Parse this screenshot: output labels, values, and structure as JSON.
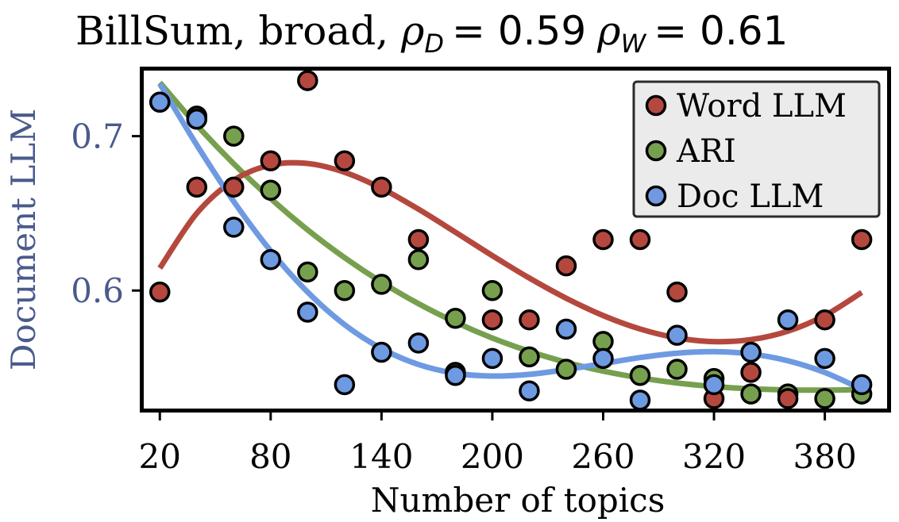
{
  "chart_data": {
    "type": "scatter",
    "title": {
      "prefix": "BillSum, broad, ",
      "rho_symbol": "ρ",
      "sub_d": "D",
      "sub_w": "W",
      "rho_d_value": "= 0.59",
      "rho_w_value": "= 0.61"
    },
    "xlabel": "Number of topics",
    "ylabel": "Document LLM",
    "xlim": [
      10,
      415
    ],
    "ylim": [
      0.522,
      0.744
    ],
    "xticks": [
      20,
      80,
      140,
      200,
      260,
      320,
      380
    ],
    "xtick_labels": [
      "20",
      "80",
      "140",
      "200",
      "260",
      "320",
      "380"
    ],
    "yticks": [
      0.6,
      0.7
    ],
    "ytick_labels": [
      "0.6",
      "0.7"
    ],
    "ylabel_color": "#4a5a8c",
    "legend_position": "top-right",
    "legend_background": "#ebebeb",
    "grid": false,
    "series": [
      {
        "name": "Word LLM",
        "color": "#b5483e",
        "points": [
          [
            20,
            0.599
          ],
          [
            40,
            0.667
          ],
          [
            60,
            0.667
          ],
          [
            80,
            0.684
          ],
          [
            100,
            0.736
          ],
          [
            120,
            0.684
          ],
          [
            140,
            0.667
          ],
          [
            160,
            0.633
          ],
          [
            180,
            0.547
          ],
          [
            200,
            0.581
          ],
          [
            220,
            0.581
          ],
          [
            240,
            0.616
          ],
          [
            260,
            0.633
          ],
          [
            280,
            0.633
          ],
          [
            300,
            0.599
          ],
          [
            320,
            0.53
          ],
          [
            340,
            0.547
          ],
          [
            360,
            0.53
          ],
          [
            380,
            0.581
          ],
          [
            400,
            0.633
          ]
        ],
        "fit": [
          0.6145,
          0.65,
          0.6714,
          0.6813,
          0.6823,
          0.6766,
          0.6662,
          0.6527,
          0.6378,
          0.6226,
          0.6081,
          0.595,
          0.5838,
          0.5751,
          0.5693,
          0.5669,
          0.5682,
          0.5737,
          0.5838,
          0.5988
        ]
      },
      {
        "name": "ARI",
        "color": "#76a04e",
        "points": [
          [
            20,
            0.722
          ],
          [
            40,
            0.713
          ],
          [
            60,
            0.7
          ],
          [
            80,
            0.665
          ],
          [
            100,
            0.612
          ],
          [
            120,
            0.6
          ],
          [
            140,
            0.604
          ],
          [
            160,
            0.62
          ],
          [
            180,
            0.582
          ],
          [
            200,
            0.6
          ],
          [
            220,
            0.557
          ],
          [
            240,
            0.549
          ],
          [
            260,
            0.567
          ],
          [
            280,
            0.545
          ],
          [
            300,
            0.549
          ],
          [
            320,
            0.543
          ],
          [
            340,
            0.533
          ],
          [
            360,
            0.533
          ],
          [
            380,
            0.53
          ],
          [
            400,
            0.533
          ]
        ],
        "fit": [
          0.7347,
          0.7071,
          0.6821,
          0.6596,
          0.6393,
          0.6213,
          0.6054,
          0.5915,
          0.5795,
          0.5692,
          0.5606,
          0.5535,
          0.5478,
          0.5434,
          0.5401,
          0.5378,
          0.5363,
          0.5356,
          0.5355,
          0.5358
        ]
      },
      {
        "name": "Doc LLM",
        "color": "#6e9ae2",
        "points": [
          [
            20,
            0.722
          ],
          [
            40,
            0.711
          ],
          [
            60,
            0.641
          ],
          [
            80,
            0.62
          ],
          [
            100,
            0.586
          ],
          [
            120,
            0.539
          ],
          [
            140,
            0.56
          ],
          [
            160,
            0.566
          ],
          [
            180,
            0.545
          ],
          [
            200,
            0.556
          ],
          [
            220,
            0.535
          ],
          [
            240,
            0.575
          ],
          [
            260,
            0.556
          ],
          [
            280,
            0.529
          ],
          [
            300,
            0.571
          ],
          [
            320,
            0.539
          ],
          [
            340,
            0.56
          ],
          [
            360,
            0.581
          ],
          [
            380,
            0.556
          ],
          [
            400,
            0.539
          ]
        ],
        "fit": [
          0.7339,
          0.6943,
          0.6577,
          0.6257,
          0.599,
          0.5779,
          0.5624,
          0.5521,
          0.5464,
          0.5446,
          0.5457,
          0.5488,
          0.5527,
          0.5566,
          0.5594,
          0.5604,
          0.5589,
          0.5545,
          0.5469,
          0.536
        ]
      }
    ],
    "fit_x": [
      20,
      40,
      60,
      80,
      100,
      120,
      140,
      160,
      180,
      200,
      220,
      240,
      260,
      280,
      300,
      320,
      340,
      360,
      380,
      400
    ],
    "draw_order": [
      1,
      0,
      2
    ]
  }
}
